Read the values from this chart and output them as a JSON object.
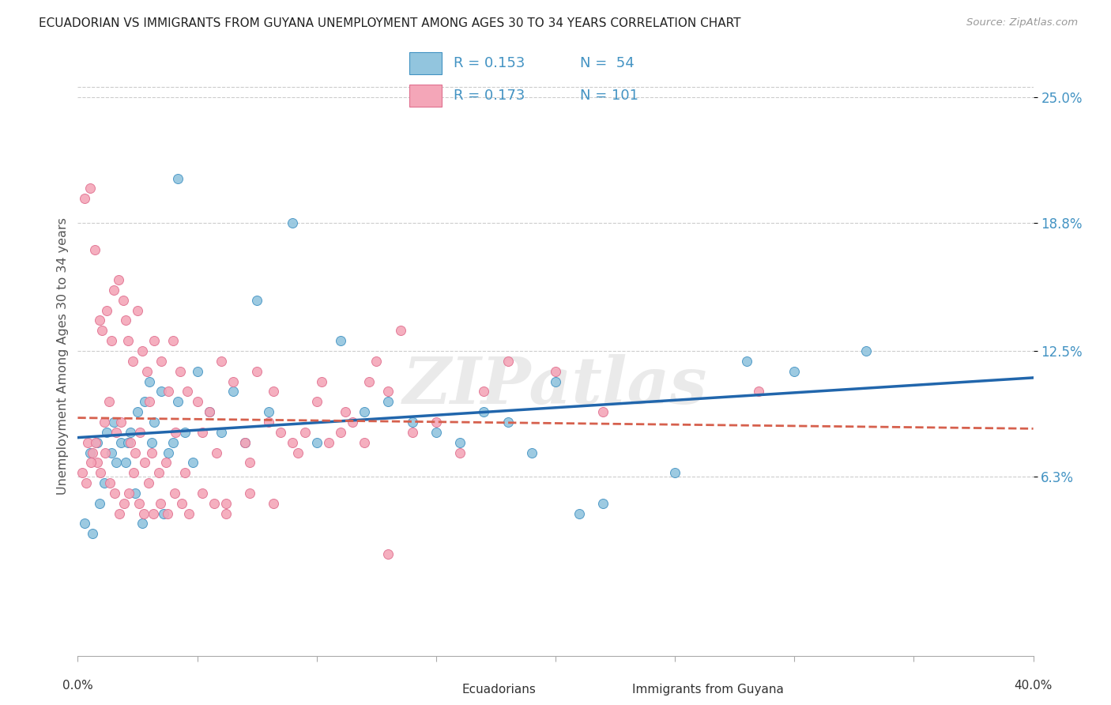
{
  "title": "ECUADORIAN VS IMMIGRANTS FROM GUYANA UNEMPLOYMENT AMONG AGES 30 TO 34 YEARS CORRELATION CHART",
  "source": "Source: ZipAtlas.com",
  "ylabel": "Unemployment Among Ages 30 to 34 years",
  "ytick_values": [
    6.3,
    12.5,
    18.8,
    25.0
  ],
  "xlim": [
    0.0,
    40.0
  ],
  "ylim": [
    -2.5,
    27.0
  ],
  "color_blue": "#92c5de",
  "color_pink": "#f4a6b8",
  "color_blue_edge": "#4393c3",
  "color_pink_edge": "#e07090",
  "color_blue_line": "#2166ac",
  "color_pink_line": "#d6604d",
  "color_blue_text": "#4393c3",
  "watermark": "ZIPatlas",
  "ecuadorians_x": [
    0.5,
    0.8,
    1.2,
    1.5,
    1.8,
    2.0,
    2.2,
    2.5,
    2.8,
    3.0,
    3.2,
    3.5,
    3.8,
    4.0,
    4.2,
    4.5,
    4.8,
    5.0,
    5.5,
    6.0,
    6.5,
    7.0,
    7.5,
    8.0,
    9.0,
    10.0,
    11.0,
    12.0,
    13.0,
    14.0,
    15.0,
    16.0,
    17.0,
    18.0,
    19.0,
    20.0,
    21.0,
    22.0,
    25.0,
    28.0,
    30.0,
    33.0,
    0.3,
    0.6,
    0.9,
    1.1,
    1.4,
    1.6,
    2.1,
    2.4,
    2.7,
    3.1,
    3.6,
    4.2
  ],
  "ecuadorians_y": [
    7.5,
    8.0,
    8.5,
    9.0,
    8.0,
    7.0,
    8.5,
    9.5,
    10.0,
    11.0,
    9.0,
    10.5,
    7.5,
    8.0,
    10.0,
    8.5,
    7.0,
    11.5,
    9.5,
    8.5,
    10.5,
    8.0,
    15.0,
    9.5,
    18.8,
    8.0,
    13.0,
    9.5,
    10.0,
    9.0,
    8.5,
    8.0,
    9.5,
    9.0,
    7.5,
    11.0,
    4.5,
    5.0,
    6.5,
    12.0,
    11.5,
    12.5,
    4.0,
    3.5,
    5.0,
    6.0,
    7.5,
    7.0,
    8.0,
    5.5,
    4.0,
    8.0,
    4.5,
    21.0
  ],
  "guyana_x": [
    0.3,
    0.5,
    0.7,
    0.9,
    1.0,
    1.2,
    1.4,
    1.5,
    1.7,
    1.9,
    2.0,
    2.1,
    2.3,
    2.5,
    2.7,
    2.9,
    3.0,
    3.2,
    3.5,
    3.8,
    4.0,
    4.3,
    4.6,
    5.0,
    5.5,
    6.0,
    6.5,
    7.0,
    7.5,
    8.0,
    8.5,
    9.0,
    9.5,
    10.0,
    10.5,
    11.0,
    11.5,
    12.0,
    12.5,
    13.0,
    14.0,
    15.0,
    16.0,
    17.0,
    18.0,
    20.0,
    0.4,
    0.6,
    0.8,
    1.1,
    1.3,
    1.6,
    1.8,
    2.2,
    2.4,
    2.6,
    2.8,
    3.1,
    3.4,
    3.7,
    4.1,
    4.5,
    5.2,
    5.8,
    6.2,
    7.2,
    8.2,
    9.2,
    10.2,
    11.2,
    12.2,
    13.5,
    0.2,
    0.35,
    0.55,
    0.75,
    0.95,
    1.15,
    1.35,
    1.55,
    1.75,
    1.95,
    2.15,
    2.35,
    2.55,
    2.75,
    2.95,
    3.15,
    3.45,
    3.75,
    4.05,
    4.35,
    4.65,
    5.2,
    5.7,
    6.2,
    7.2,
    8.2,
    13.0,
    22.0,
    28.5
  ],
  "guyana_y": [
    20.0,
    20.5,
    17.5,
    14.0,
    13.5,
    14.5,
    13.0,
    15.5,
    16.0,
    15.0,
    14.0,
    13.0,
    12.0,
    14.5,
    12.5,
    11.5,
    10.0,
    13.0,
    12.0,
    10.5,
    13.0,
    11.5,
    10.5,
    10.0,
    9.5,
    12.0,
    11.0,
    8.0,
    11.5,
    9.0,
    8.5,
    8.0,
    8.5,
    10.0,
    8.0,
    8.5,
    9.0,
    8.0,
    12.0,
    10.5,
    8.5,
    9.0,
    7.5,
    10.5,
    12.0,
    11.5,
    8.0,
    7.5,
    7.0,
    9.0,
    10.0,
    8.5,
    9.0,
    8.0,
    7.5,
    8.5,
    7.0,
    7.5,
    6.5,
    7.0,
    8.5,
    6.5,
    8.5,
    7.5,
    5.0,
    7.0,
    10.5,
    7.5,
    11.0,
    9.5,
    11.0,
    13.5,
    6.5,
    6.0,
    7.0,
    8.0,
    6.5,
    7.5,
    6.0,
    5.5,
    4.5,
    5.0,
    5.5,
    6.5,
    5.0,
    4.5,
    6.0,
    4.5,
    5.0,
    4.5,
    5.5,
    5.0,
    4.5,
    5.5,
    5.0,
    4.5,
    5.5,
    5.0,
    2.5,
    9.5,
    10.5
  ]
}
